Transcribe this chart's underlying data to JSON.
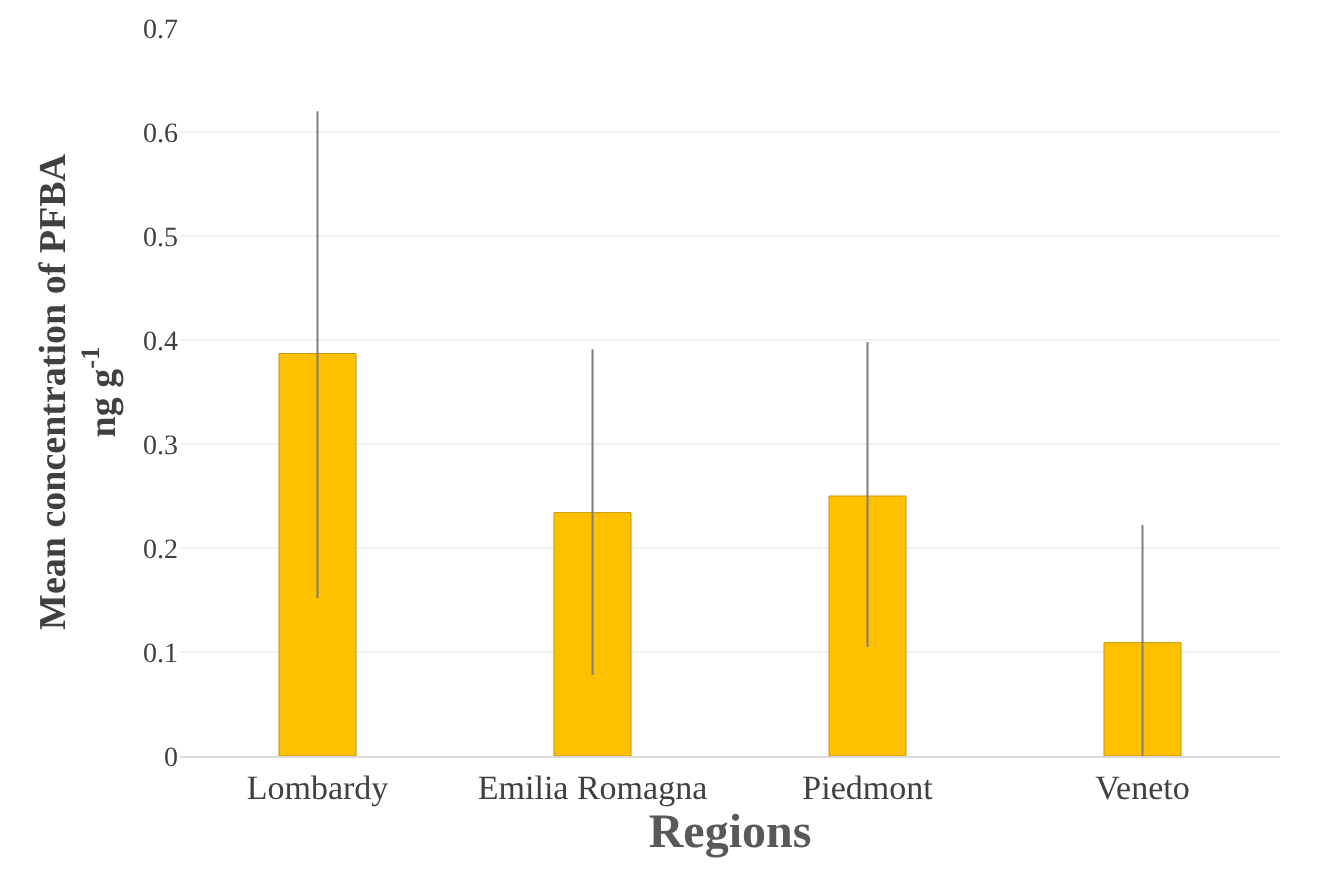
{
  "chart_data": {
    "type": "bar",
    "xlabel": "Regions",
    "ylabel": "Mean concentration of PFBA\nng g$^{-1}$",
    "categories": [
      "Lombardy",
      "Emilia Romagna",
      "Piedmont",
      "Veneto"
    ],
    "values": [
      0.387,
      0.234,
      0.25,
      0.109
    ],
    "errors": [
      [
        0.152,
        0.62
      ],
      [
        0.078,
        0.391
      ],
      [
        0.105,
        0.398
      ],
      [
        0.0,
        0.222
      ]
    ],
    "color": "#ffc000",
    "ylim": [
      0,
      0.7
    ],
    "yticks": [
      0,
      0.1,
      0.2,
      0.3,
      0.4,
      0.5,
      0.6,
      0.7
    ],
    "grid": "y"
  }
}
